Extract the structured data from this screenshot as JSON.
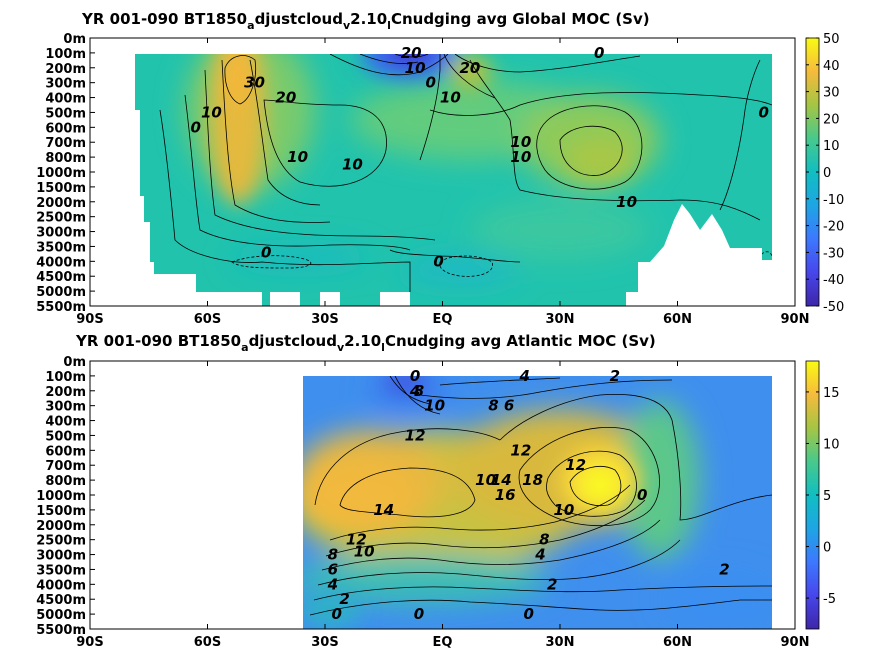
{
  "chart_data": [
    {
      "type": "heatmap",
      "name": "global",
      "title_parts": [
        "YR 001-090 BT1850",
        "a",
        "djustcloud",
        "v",
        "2.10",
        "l",
        "Cnudging avg  Global MOC (Sv)"
      ],
      "xlabel": "",
      "ylabel": "",
      "x_ticks": [
        "90S",
        "60S",
        "30S",
        "EQ",
        "30N",
        "60N",
        "90N"
      ],
      "y_ticks": [
        "0m",
        "100m",
        "200m",
        "300m",
        "400m",
        "500m",
        "600m",
        "700m",
        "800m",
        "1000m",
        "1500m",
        "2000m",
        "2500m",
        "3000m",
        "3500m",
        "4000m",
        "4500m",
        "5000m",
        "5500m"
      ],
      "colorbar": {
        "ticks": [
          "50",
          "40",
          "30",
          "20",
          "10",
          "0",
          "-10",
          "-20",
          "-30",
          "-40",
          "-50"
        ],
        "range": [
          -50,
          50
        ]
      },
      "contour_labels": [
        {
          "text": "30",
          "lat": -48,
          "depth": 300
        },
        {
          "text": "20",
          "lat": -40,
          "depth": 400
        },
        {
          "text": "10",
          "lat": -59,
          "depth": 500
        },
        {
          "text": "0",
          "lat": -63,
          "depth": 600
        },
        {
          "text": "10",
          "lat": -37,
          "depth": 800
        },
        {
          "text": "10",
          "lat": -23,
          "depth": 900
        },
        {
          "text": "0",
          "lat": -45,
          "depth": 3700
        },
        {
          "text": "20",
          "lat": -8,
          "depth": 100
        },
        {
          "text": "10",
          "lat": -7,
          "depth": 200
        },
        {
          "text": "0",
          "lat": -3,
          "depth": 300
        },
        {
          "text": "20",
          "lat": 7,
          "depth": 200
        },
        {
          "text": "10",
          "lat": 2,
          "depth": 400
        },
        {
          "text": "0",
          "lat": 40,
          "depth": 100
        },
        {
          "text": "10",
          "lat": 20,
          "depth": 800
        },
        {
          "text": "10",
          "lat": 20,
          "depth": 700
        },
        {
          "text": "10",
          "lat": 47,
          "depth": 2000
        },
        {
          "text": "0",
          "lat": 82,
          "depth": 500
        },
        {
          "text": "0",
          "lat": -1,
          "depth": 4000
        }
      ]
    },
    {
      "type": "heatmap",
      "name": "atlantic",
      "title_parts": [
        "YR 001-090 BT1850",
        "a",
        "djustcloud",
        "v",
        "2.10",
        "l",
        "Cnudging avg  Atlantic MOC (Sv)"
      ],
      "xlabel": "",
      "ylabel": "",
      "x_ticks": [
        "90S",
        "60S",
        "30S",
        "EQ",
        "30N",
        "60N",
        "90N"
      ],
      "y_ticks": [
        "0m",
        "100m",
        "200m",
        "300m",
        "400m",
        "500m",
        "600m",
        "700m",
        "800m",
        "1000m",
        "1500m",
        "2000m",
        "2500m",
        "3000m",
        "3500m",
        "4000m",
        "4500m",
        "5000m",
        "5500m"
      ],
      "colorbar": {
        "ticks": [
          "15",
          "10",
          "5",
          "0",
          "-5"
        ],
        "range": [
          -8,
          18
        ]
      },
      "contour_labels": [
        {
          "text": "0",
          "lat": -7,
          "depth": 100
        },
        {
          "text": "4",
          "lat": -7,
          "depth": 200
        },
        {
          "text": "8",
          "lat": -6,
          "depth": 200
        },
        {
          "text": "10",
          "lat": -2,
          "depth": 300
        },
        {
          "text": "4",
          "lat": 21,
          "depth": 100
        },
        {
          "text": "2",
          "lat": 44,
          "depth": 100
        },
        {
          "text": "6",
          "lat": 17,
          "depth": 300
        },
        {
          "text": "8",
          "lat": 13,
          "depth": 300
        },
        {
          "text": "12",
          "lat": -7,
          "depth": 500
        },
        {
          "text": "12",
          "lat": 20,
          "depth": 600
        },
        {
          "text": "10",
          "lat": 11,
          "depth": 800
        },
        {
          "text": "14",
          "lat": 15,
          "depth": 800
        },
        {
          "text": "18",
          "lat": 23,
          "depth": 800
        },
        {
          "text": "16",
          "lat": 16,
          "depth": 1000
        },
        {
          "text": "12",
          "lat": 34,
          "depth": 700
        },
        {
          "text": "0",
          "lat": 51,
          "depth": 1000
        },
        {
          "text": "14",
          "lat": -15,
          "depth": 1500
        },
        {
          "text": "10",
          "lat": 31,
          "depth": 1500
        },
        {
          "text": "12",
          "lat": -22,
          "depth": 2500
        },
        {
          "text": "10",
          "lat": -20,
          "depth": 2900
        },
        {
          "text": "8",
          "lat": 26,
          "depth": 2500
        },
        {
          "text": "4",
          "lat": 25,
          "depth": 3000
        },
        {
          "text": "8",
          "lat": -28,
          "depth": 3000
        },
        {
          "text": "6",
          "lat": -28,
          "depth": 3500
        },
        {
          "text": "4",
          "lat": -28,
          "depth": 4000
        },
        {
          "text": "2",
          "lat": -25,
          "depth": 4500
        },
        {
          "text": "0",
          "lat": -27,
          "depth": 5000
        },
        {
          "text": "2",
          "lat": 72,
          "depth": 3500
        },
        {
          "text": "2",
          "lat": 28,
          "depth": 4000
        },
        {
          "text": "0",
          "lat": 22,
          "depth": 5000
        },
        {
          "text": "0",
          "lat": -6,
          "depth": 5000
        }
      ]
    }
  ]
}
